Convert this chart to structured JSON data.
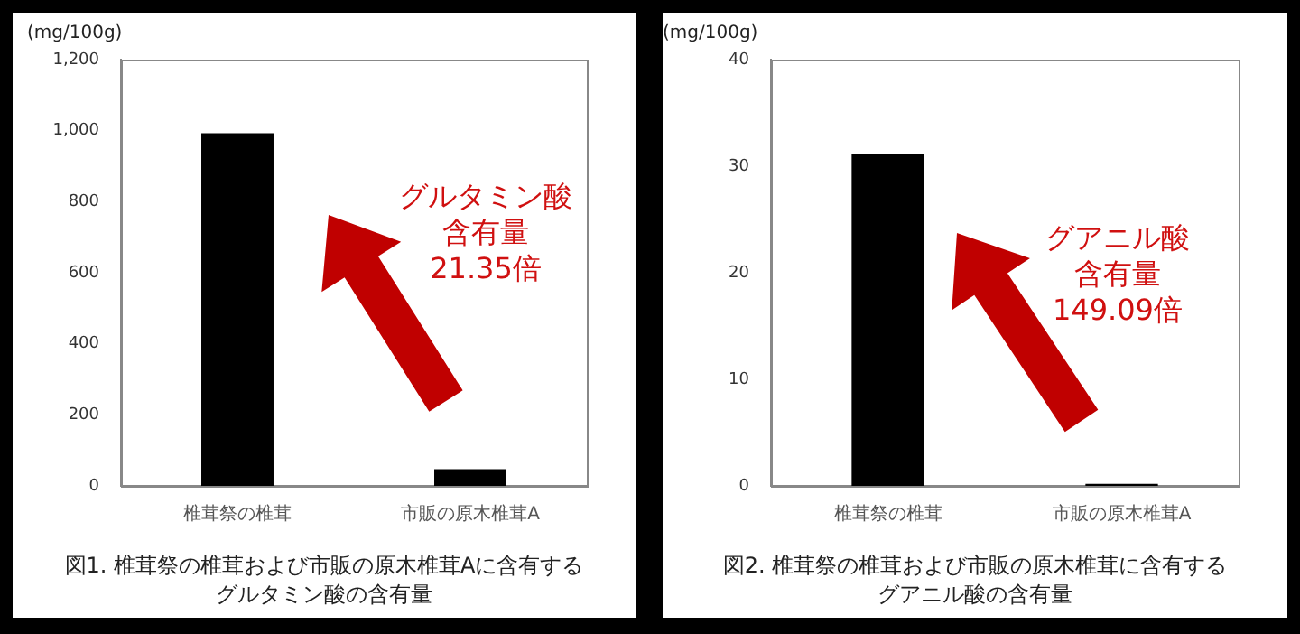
{
  "chart_data": [
    {
      "type": "bar",
      "title": "図1. 椎茸祭の椎茸および市販の原木椎茸Aに含有する",
      "subtitle": "グルタミン酸の含有量",
      "ylabel": "(mg/100g)",
      "categories": [
        "椎茸祭の椎茸",
        "市販の原木椎茸A"
      ],
      "values": [
        993,
        47
      ],
      "color": "#000000",
      "ylim": [
        0,
        1200
      ],
      "yticks": [
        0,
        200,
        400,
        600,
        800,
        {
          "value": 1000,
          "label": "1,000"
        },
        {
          "value": 1200,
          "label": "1,200"
        }
      ],
      "grid": false,
      "legend": false,
      "annotations": [
        "グルタミン酸",
        "含有量",
        "21.35倍"
      ]
    },
    {
      "type": "bar",
      "title": "図2. 椎茸祭の椎茸および市販の原木椎茸に含有する",
      "subtitle": "グアニル酸の含有量",
      "ylabel": "(mg/100g)",
      "categories": [
        "椎茸祭の椎茸",
        "市販の原木椎茸A"
      ],
      "values": [
        31.1,
        0.2
      ],
      "color": "#000000",
      "ylim": [
        0,
        40
      ],
      "yticks": [
        0,
        10,
        20,
        30,
        40
      ],
      "grid": false,
      "legend": false,
      "annotations": [
        "グアニル酸",
        "含有量",
        "149.09倍"
      ]
    }
  ]
}
